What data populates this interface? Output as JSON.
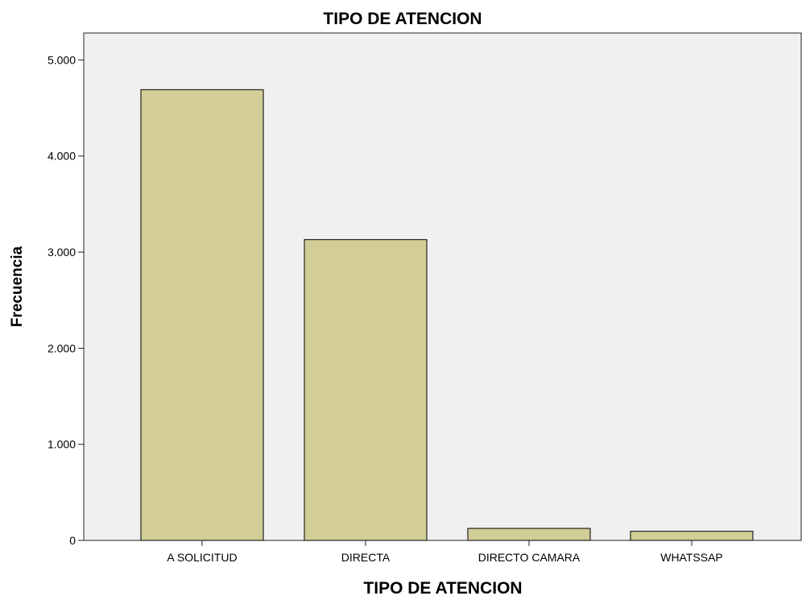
{
  "chart_data": {
    "type": "bar",
    "title": "TIPO DE ATENCION",
    "xlabel": "TIPO DE ATENCION",
    "ylabel": "Frecuencia",
    "categories": [
      "A SOLICITUD",
      "DIRECTA",
      "DIRECTO CAMARA",
      "WHATSSAP"
    ],
    "values": [
      4690,
      3130,
      125,
      95
    ],
    "ylim": [
      0,
      5280
    ],
    "yticks": [
      0,
      1000,
      2000,
      3000,
      4000,
      5000
    ],
    "ytick_labels": [
      "0",
      "1.000",
      "2.000",
      "3.000",
      "4.000",
      "5.000"
    ],
    "grid": false,
    "legend": "none",
    "colors": {
      "bar_fill": "#d3ce97",
      "bar_stroke": "#222222",
      "plot_background": "#f0f0f0",
      "axis": "#222222",
      "text": "#000000"
    }
  }
}
